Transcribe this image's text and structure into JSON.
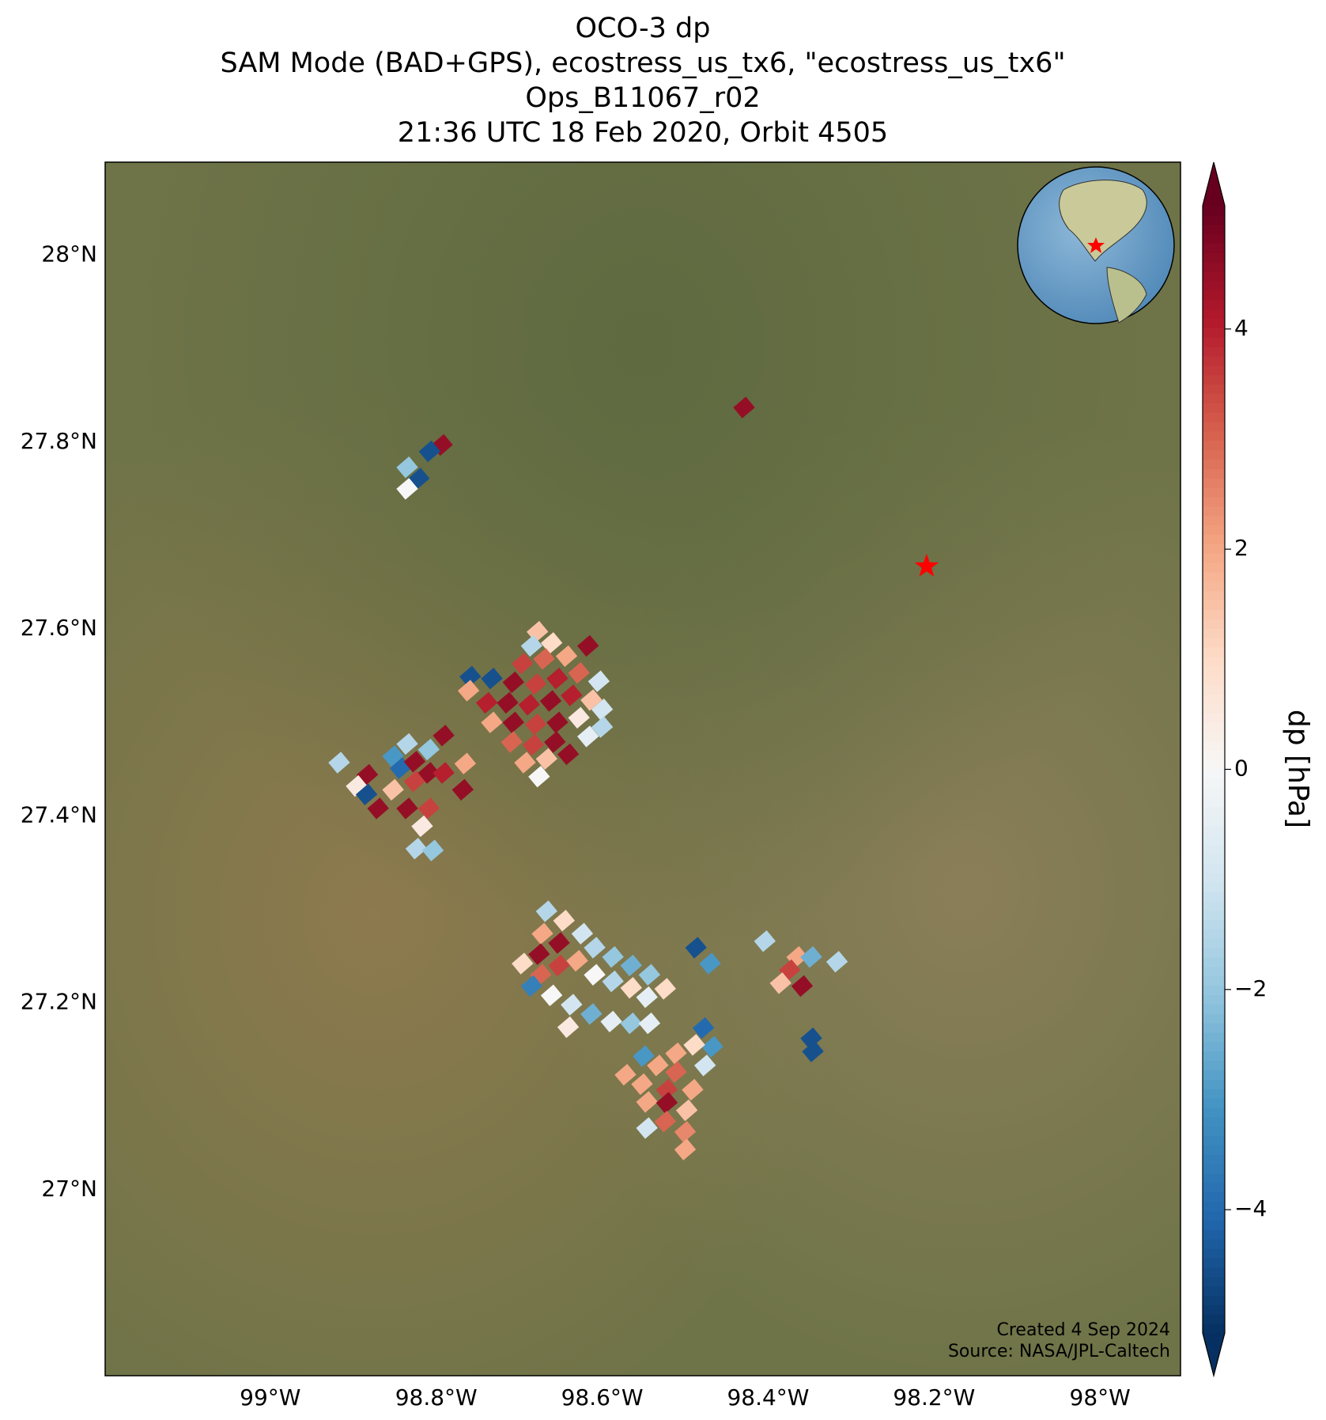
{
  "chart_data": {
    "type": "footprint-map",
    "title": [
      "OCO-3 dp",
      "SAM Mode (BAD+GPS), ecostress_us_tx6, \"ecostress_us_tx6\"",
      "Ops_B11067_r02",
      "21:36 UTC 18 Feb 2020, Orbit 4505"
    ],
    "xlim": [
      -99.199,
      -97.903
    ],
    "ylim": [
      26.801,
      28.0995
    ],
    "xticks": [
      {
        "value": -99,
        "label": "99°W"
      },
      {
        "value": -98.8,
        "label": "98.8°W"
      },
      {
        "value": -98.6,
        "label": "98.6°W"
      },
      {
        "value": -98.4,
        "label": "98.4°W"
      },
      {
        "value": -98.2,
        "label": "98.2°W"
      },
      {
        "value": -98,
        "label": "98°W"
      }
    ],
    "yticks": [
      {
        "value": 27,
        "label": "27°N"
      },
      {
        "value": 27.2,
        "label": "27.2°N"
      },
      {
        "value": 27.4,
        "label": "27.4°N"
      },
      {
        "value": 27.6,
        "label": "27.6°N"
      },
      {
        "value": 27.8,
        "label": "27.8°N"
      },
      {
        "value": 28,
        "label": "28°N"
      }
    ],
    "grid": true,
    "colorbar": {
      "label": "dp [hPa]",
      "clim": [
        -5.12,
        5.12
      ],
      "ticks": [
        {
          "value": -4,
          "label": "−4"
        },
        {
          "value": -2,
          "label": "−2"
        },
        0,
        2,
        4
      ]
    },
    "colormap": [
      "#053061",
      "#2166ac",
      "#4393c3",
      "#92c5de",
      "#d1e5f0",
      "#f7f7f7",
      "#fddbc7",
      "#f4a582",
      "#d6604d",
      "#b2182b",
      "#67001f"
    ],
    "marker": {
      "x": -98.209,
      "y": 27.667,
      "color": "#ff0000"
    },
    "x": [
      -98.429,
      -98.793,
      -98.808,
      -98.835,
      -98.821,
      -98.835,
      -98.678,
      -98.685,
      -98.661,
      -98.617,
      -98.696,
      -98.67,
      -98.643,
      -98.759,
      -98.733,
      -98.707,
      -98.68,
      -98.654,
      -98.628,
      -98.604,
      -98.761,
      -98.739,
      -98.714,
      -98.688,
      -98.662,
      -98.637,
      -98.613,
      -98.6,
      -98.733,
      -98.707,
      -98.68,
      -98.654,
      -98.628,
      -98.6,
      -98.617,
      -98.709,
      -98.683,
      -98.657,
      -98.693,
      -98.667,
      -98.641,
      -98.676,
      -98.917,
      -98.883,
      -98.896,
      -98.884,
      -98.87,
      -98.852,
      -98.835,
      -98.843,
      -98.852,
      -98.826,
      -98.826,
      -98.809,
      -98.791,
      -98.809,
      -98.835,
      -98.809,
      -98.791,
      -98.765,
      -98.768,
      -98.817,
      -98.824,
      -98.804,
      -98.667,
      -98.646,
      -98.672,
      -98.652,
      -98.676,
      -98.696,
      -98.674,
      -98.652,
      -98.624,
      -98.609,
      -98.587,
      -98.565,
      -98.543,
      -98.524,
      -98.63,
      -98.609,
      -98.587,
      -98.565,
      -98.546,
      -98.685,
      -98.661,
      -98.637,
      -98.613,
      -98.589,
      -98.565,
      -98.543,
      -98.641,
      -98.478,
      -98.467,
      -98.489,
      -98.55,
      -98.511,
      -98.476,
      -98.533,
      -98.572,
      -98.552,
      -98.511,
      -98.491,
      -98.522,
      -98.546,
      -98.522,
      -98.498,
      -98.524,
      -98.546,
      -98.5,
      -98.5,
      -98.487,
      -98.47,
      -98.404,
      -98.365,
      -98.348,
      -98.374,
      -98.385,
      -98.359,
      -98.317,
      -98.348,
      -98.346
    ],
    "y": [
      27.837,
      27.797,
      27.79,
      27.773,
      27.761,
      27.75,
      27.597,
      27.582,
      27.585,
      27.582,
      27.563,
      27.568,
      27.571,
      27.549,
      27.547,
      27.543,
      27.541,
      27.547,
      27.553,
      27.544,
      27.534,
      27.521,
      27.521,
      27.519,
      27.523,
      27.529,
      27.524,
      27.514,
      27.5,
      27.5,
      27.498,
      27.5,
      27.505,
      27.495,
      27.485,
      27.479,
      27.476,
      27.479,
      27.457,
      27.461,
      27.466,
      27.442,
      27.457,
      27.444,
      27.432,
      27.423,
      27.408,
      27.464,
      27.477,
      27.451,
      27.428,
      27.437,
      27.458,
      27.471,
      27.486,
      27.446,
      27.408,
      27.408,
      27.446,
      27.456,
      27.428,
      27.389,
      27.365,
      27.363,
      27.298,
      27.288,
      27.274,
      27.264,
      27.252,
      27.242,
      27.23,
      27.24,
      27.274,
      27.259,
      27.249,
      27.24,
      27.23,
      27.215,
      27.245,
      27.23,
      27.223,
      27.216,
      27.206,
      27.218,
      27.208,
      27.198,
      27.188,
      27.18,
      27.178,
      27.178,
      27.174,
      27.173,
      27.153,
      27.155,
      27.143,
      27.146,
      27.133,
      27.133,
      27.123,
      27.113,
      27.126,
      27.107,
      27.107,
      27.094,
      27.093,
      27.085,
      27.073,
      27.066,
      27.062,
      27.043,
      27.259,
      27.242,
      27.266,
      27.249,
      27.249,
      27.235,
      27.221,
      27.218,
      27.244,
      27.162,
      27.148
    ],
    "values": [
      4.5,
      4.5,
      -4.5,
      -2,
      -4.5,
      0,
      1.5,
      -1.5,
      1,
      4.5,
      3.5,
      3,
      2,
      -4.5,
      -4.5,
      4.5,
      3.5,
      4,
      3,
      -1,
      2,
      4,
      4.5,
      4,
      4.5,
      4,
      1.5,
      -1,
      2,
      4.5,
      3.5,
      4.5,
      0.5,
      -1.5,
      -0.5,
      3,
      3.5,
      4.5,
      2,
      1.5,
      4.5,
      0,
      -1.5,
      4.5,
      0.5,
      -4.5,
      4.5,
      -3,
      -1.5,
      -4,
      1.5,
      3.5,
      4.5,
      -2,
      4.5,
      4.5,
      4.5,
      3.5,
      4,
      2,
      4.5,
      0.5,
      -1.5,
      -2,
      -1.5,
      1,
      2,
      4.5,
      4.5,
      1,
      3,
      3.5,
      -1,
      -1.5,
      -2,
      -2.5,
      -2,
      1,
      2,
      0,
      -1.5,
      1,
      -0.5,
      -3.5,
      0,
      -1,
      -2.5,
      -0.5,
      -2,
      -0.5,
      0.5,
      -4,
      -3,
      1,
      -3,
      2,
      -1,
      2,
      2,
      2,
      3,
      2,
      3.5,
      2,
      4.5,
      1.5,
      3,
      -1,
      2.5,
      2,
      -4.5,
      -3,
      -1.5,
      2,
      -2.5,
      3.5,
      1.5,
      4.5,
      -1.5,
      -4.5,
      -4.5
    ],
    "credits": [
      "Created 4 Sep 2024",
      "Source: NASA/JPL-Caltech"
    ]
  }
}
